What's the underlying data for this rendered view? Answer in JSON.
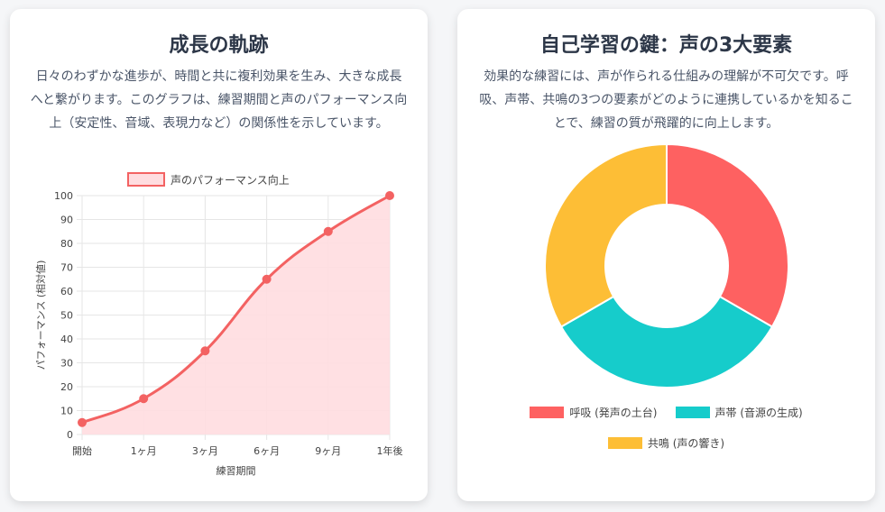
{
  "left_card": {
    "title": "成長の軌跡",
    "description": "日々のわずかな進歩が、時間と共に複利効果を生み、大きな成長へと繋がります。このグラフは、練習期間と声のパフォーマンス向上（安定性、音域、表現力など）の関係性を示しています。"
  },
  "right_card": {
    "title": "自己学習の鍵：声の3大要素",
    "description": "効果的な練習には、声が作られる仕組みの理解が不可欠です。呼吸、声帯、共鳴の3つの要素がどのように連携しているかを知ることで、練習の質が飛躍的に向上します。"
  },
  "chart_data": [
    {
      "type": "area",
      "series": [
        {
          "name": "声のパフォーマンス向上",
          "values": [
            5,
            15,
            35,
            65,
            85,
            100
          ]
        }
      ],
      "categories": [
        "開始",
        "1ヶ月",
        "3ヶ月",
        "6ヶ月",
        "9ヶ月",
        "1年後"
      ],
      "xlabel": "練習期間",
      "ylabel": "パフォーマンス (相対値)",
      "ylim": [
        0,
        100
      ],
      "yticks": [
        0,
        10,
        20,
        30,
        40,
        50,
        60,
        70,
        80,
        90,
        100
      ],
      "grid": true,
      "legend": "top-center",
      "colors": {
        "line": "#f36262",
        "fill": "#ffdde0",
        "grid": "#e6e6e6"
      }
    },
    {
      "type": "pie",
      "donut": true,
      "labels": [
        "呼吸 (発声の土台)",
        "声帯 (音源の生成)",
        "共鳴 (声の響き)"
      ],
      "values": [
        33.3,
        33.3,
        33.3
      ],
      "colors": [
        "#fe6161",
        "#16cccb",
        "#fdbe36"
      ],
      "legend": "bottom"
    }
  ]
}
